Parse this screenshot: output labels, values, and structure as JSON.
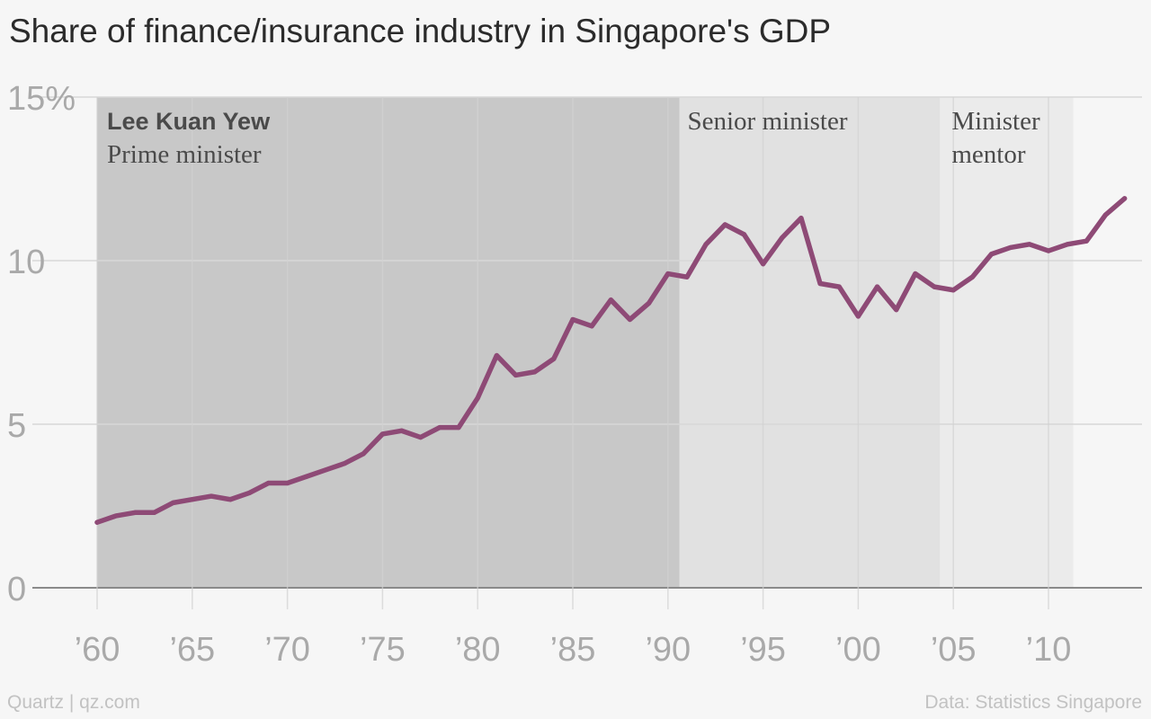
{
  "chart_data": {
    "type": "line",
    "title": "Share of finance/insurance industry in Singapore's GDP",
    "y_ticks": [
      "15%",
      "10",
      "5",
      "0"
    ],
    "y_tick_values": [
      15,
      10,
      5,
      0
    ],
    "x_ticks": [
      "’60",
      "’65",
      "’70",
      "’75",
      "’80",
      "’85",
      "’90",
      "’95",
      "’00",
      "’05",
      "’10"
    ],
    "x_tick_values": [
      1960,
      1965,
      1970,
      1975,
      1980,
      1985,
      1990,
      1995,
      2000,
      2005,
      2010
    ],
    "xlim": [
      1960,
      2014
    ],
    "ylim": [
      0,
      15
    ],
    "grid": true,
    "line_color": "#8e4a76",
    "series": [
      {
        "x": [
          1960,
          1961,
          1962,
          1963,
          1964,
          1965,
          1966,
          1967,
          1968,
          1969,
          1970,
          1971,
          1972,
          1973,
          1974,
          1975,
          1976,
          1977,
          1978,
          1979,
          1980,
          1981,
          1982,
          1983,
          1984,
          1985,
          1986,
          1987,
          1988,
          1989,
          1990,
          1991,
          1992,
          1993,
          1994,
          1995,
          1996,
          1997,
          1998,
          1999,
          2000,
          2001,
          2002,
          2003,
          2004,
          2005,
          2006,
          2007,
          2008,
          2009,
          2010,
          2011,
          2012,
          2013,
          2014
        ],
        "values": [
          2.0,
          2.2,
          2.3,
          2.3,
          2.6,
          2.7,
          2.8,
          2.7,
          2.9,
          3.2,
          3.2,
          3.4,
          3.6,
          3.8,
          4.1,
          4.7,
          4.8,
          4.6,
          4.9,
          4.9,
          5.8,
          7.1,
          6.5,
          6.6,
          7.0,
          8.2,
          8.0,
          8.8,
          8.2,
          8.7,
          9.6,
          9.5,
          10.5,
          11.1,
          10.8,
          9.9,
          10.7,
          11.3,
          9.3,
          9.2,
          8.3,
          9.2,
          8.5,
          9.6,
          9.2,
          9.1,
          9.5,
          10.2,
          10.4,
          10.5,
          10.3,
          10.5,
          10.6,
          11.4,
          11.9
        ]
      }
    ],
    "regions": [
      {
        "from": 1960,
        "to": 1990.6,
        "color": "#c8c8c8",
        "label_bold": "Lee Kuan Yew",
        "label": "Prime minister"
      },
      {
        "from": 1990.6,
        "to": 2004.3,
        "color": "#e1e1e1",
        "label_bold": "",
        "label": "Senior minister"
      },
      {
        "from": 2004.3,
        "to": 2011.3,
        "color": "#ebebeb",
        "label_bold": "",
        "label": "Minister mentor"
      }
    ]
  },
  "footer": {
    "credit": "Quartz | qz.com",
    "source": "Data: Statistics Singapore"
  }
}
